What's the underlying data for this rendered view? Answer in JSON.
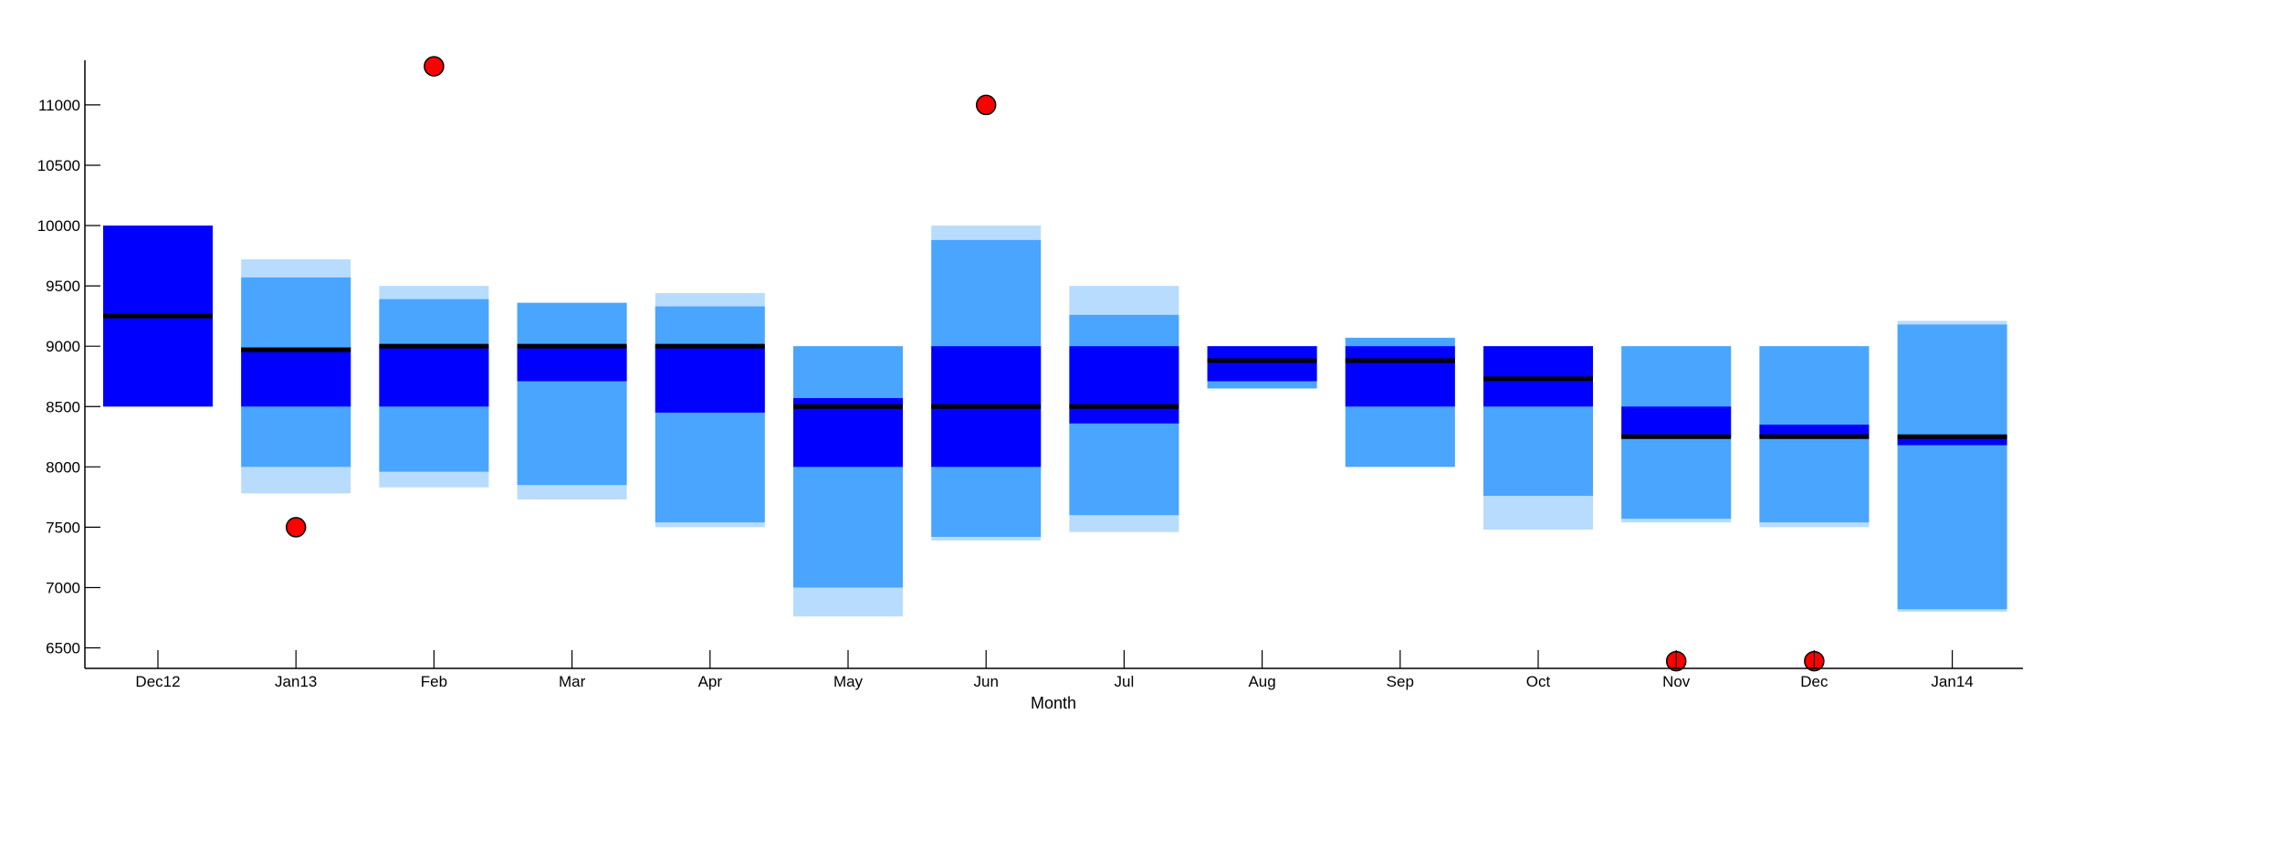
{
  "chart_data": {
    "type": "box",
    "title": "",
    "xlabel": "Month",
    "ylabel": "",
    "ylim": [
      6330,
      11370
    ],
    "yticks": [
      6500,
      7000,
      7500,
      8000,
      8500,
      9000,
      9500,
      10000,
      10500,
      11000
    ],
    "categories": [
      "Dec12",
      "Jan13",
      "Feb",
      "Mar",
      "Apr",
      "May",
      "Jun",
      "Jul",
      "Aug",
      "Sep",
      "Oct",
      "Nov",
      "Dec",
      "Jan14"
    ],
    "colors": {
      "whisker_band": "#b8dcfe",
      "outer_band": "#4aa5fe",
      "iqr_band": "#0000fe",
      "median": "#000000",
      "outlier_fill": "#ff0000",
      "outlier_edge": "#000000"
    },
    "boxes": [
      {
        "category": "Dec12",
        "lower_whisker": 8500,
        "p10": 8500,
        "q1": 8500,
        "median": 9250,
        "q3": 10000,
        "p90": 10000,
        "upper_whisker": 10000
      },
      {
        "category": "Jan13",
        "lower_whisker": 7780,
        "p10": 8000,
        "q1": 8500,
        "median": 8970,
        "q3": 8990,
        "p90": 9570,
        "upper_whisker": 9720
      },
      {
        "category": "Feb",
        "lower_whisker": 7830,
        "p10": 7960,
        "q1": 8500,
        "median": 9000,
        "q3": 9000,
        "p90": 9390,
        "upper_whisker": 9500
      },
      {
        "category": "Mar",
        "lower_whisker": 7730,
        "p10": 7850,
        "q1": 8710,
        "median": 9000,
        "q3": 9000,
        "p90": 9360,
        "upper_whisker": 9360
      },
      {
        "category": "Apr",
        "lower_whisker": 7500,
        "p10": 7540,
        "q1": 8450,
        "median": 9000,
        "q3": 9000,
        "p90": 9330,
        "upper_whisker": 9440
      },
      {
        "category": "May",
        "lower_whisker": 6760,
        "p10": 7000,
        "q1": 8000,
        "median": 8500,
        "q3": 8570,
        "p90": 9000,
        "upper_whisker": 9000
      },
      {
        "category": "Jun",
        "lower_whisker": 7390,
        "p10": 7420,
        "q1": 8000,
        "median": 8500,
        "q3": 9000,
        "p90": 9880,
        "upper_whisker": 10000
      },
      {
        "category": "Jul",
        "lower_whisker": 7460,
        "p10": 7600,
        "q1": 8360,
        "median": 8500,
        "q3": 9000,
        "p90": 9260,
        "upper_whisker": 9500
      },
      {
        "category": "Aug",
        "lower_whisker": 8650,
        "p10": 8650,
        "q1": 8710,
        "median": 8880,
        "q3": 9000,
        "p90": 9000,
        "upper_whisker": 9000
      },
      {
        "category": "Sep",
        "lower_whisker": 8000,
        "p10": 8000,
        "q1": 8500,
        "median": 8880,
        "q3": 9000,
        "p90": 9070,
        "upper_whisker": 9070
      },
      {
        "category": "Oct",
        "lower_whisker": 7480,
        "p10": 7760,
        "q1": 8500,
        "median": 8730,
        "q3": 9000,
        "p90": 9000,
        "upper_whisker": 9000
      },
      {
        "category": "Nov",
        "lower_whisker": 7540,
        "p10": 7570,
        "q1": 8250,
        "median": 8250,
        "q3": 8500,
        "p90": 9000,
        "upper_whisker": 9000
      },
      {
        "category": "Dec",
        "lower_whisker": 7500,
        "p10": 7540,
        "q1": 8250,
        "median": 8250,
        "q3": 8350,
        "p90": 9000,
        "upper_whisker": 9000
      },
      {
        "category": "Jan14",
        "lower_whisker": 6800,
        "p10": 6820,
        "q1": 8180,
        "median": 8250,
        "q3": 8260,
        "p90": 9180,
        "upper_whisker": 9210
      }
    ],
    "outliers": [
      {
        "category": "Jan13",
        "value": 7500
      },
      {
        "category": "Feb",
        "value": 11320
      },
      {
        "category": "Jun",
        "value": 11000
      },
      {
        "category": "Nov",
        "value": 6390
      },
      {
        "category": "Dec",
        "value": 6390
      }
    ],
    "grid": false,
    "legend": "none"
  }
}
